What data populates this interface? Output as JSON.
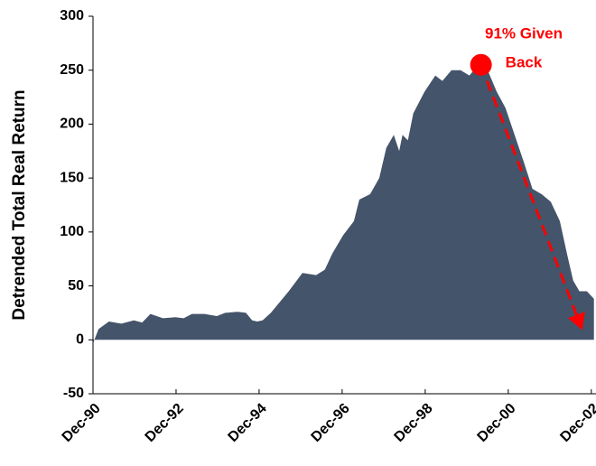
{
  "chart_data": {
    "type": "area",
    "y_label": "Detrended Total Real Return",
    "color": "#44546a",
    "x": [
      1990.92,
      1991.05,
      1991.3,
      1991.6,
      1991.9,
      1992.1,
      1992.3,
      1992.6,
      1992.9,
      1993.1,
      1993.3,
      1993.6,
      1993.9,
      1994.1,
      1994.4,
      1994.6,
      1994.75,
      1994.87,
      1995.0,
      1995.2,
      1995.63,
      1995.96,
      1996.29,
      1996.5,
      1996.68,
      1996.94,
      1997.2,
      1997.33,
      1997.59,
      1997.81,
      1997.98,
      1998.16,
      1998.29,
      1998.37,
      1998.5,
      1998.63,
      1998.9,
      1999.16,
      1999.33,
      1999.55,
      1999.77,
      1999.98,
      2000.2,
      2000.42,
      2000.64,
      2000.85,
      2001.07,
      2001.29,
      2001.5,
      2001.72,
      2001.94,
      2002.16,
      2002.33,
      2002.48,
      2002.63,
      2002.81,
      2002.98
    ],
    "values": [
      -3,
      10,
      17,
      15,
      18,
      16,
      24,
      20,
      21,
      20,
      24,
      24,
      22,
      25,
      26,
      25,
      18,
      17,
      18,
      25,
      45,
      62,
      60,
      65,
      80,
      97,
      110,
      130,
      135,
      150,
      178,
      190,
      175,
      190,
      185,
      210,
      230,
      245,
      240,
      250,
      250,
      245,
      255,
      250,
      230,
      215,
      190,
      165,
      140,
      135,
      128,
      110,
      80,
      55,
      45,
      45,
      38
    ],
    "xlim": [
      1990.917,
      2003.03
    ],
    "xticks": [
      {
        "value": 1990.917,
        "label": "Dec-90"
      },
      {
        "value": 1992.917,
        "label": "Dec-92"
      },
      {
        "value": 1994.917,
        "label": "Dec-94"
      },
      {
        "value": 1996.917,
        "label": "Dec-96"
      },
      {
        "value": 1998.917,
        "label": "Dec-98"
      },
      {
        "value": 2000.917,
        "label": "Dec-00"
      },
      {
        "value": 2002.917,
        "label": "Dec-02"
      }
    ],
    "ylim": [
      -50,
      300
    ],
    "yticks": [
      -50,
      0,
      50,
      100,
      150,
      200,
      250,
      300
    ],
    "annotation": {
      "lines": [
        "91% Given",
        "Back"
      ],
      "color": "#ff0000",
      "x": 2000.26,
      "y": 255,
      "arrow_to_x": 2002.7,
      "arrow_to_y": 9
    }
  }
}
